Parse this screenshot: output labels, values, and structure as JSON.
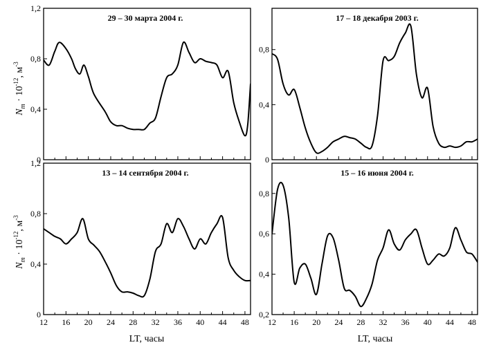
{
  "figure": {
    "ylabel_main": "N",
    "ylabel_sub": "m",
    "ylabel_rest": " · 10",
    "ylabel_exp": "-12",
    "ylabel_unit": ", м",
    "ylabel_unit_exp": "-3",
    "xlabel": "LT, часы"
  },
  "chart_data": [
    {
      "type": "line",
      "title": "29 – 30  марта 2004 г.",
      "xlim": [
        12,
        49
      ],
      "ylim": [
        0,
        1.2
      ],
      "xticks": [],
      "xtick_labels": [],
      "yticks": [
        0,
        0.4,
        0.8,
        1.2
      ],
      "ytick_labels": [
        "0",
        "0,4",
        "0,8",
        "1,2"
      ],
      "x": [
        12,
        13,
        14,
        14.8,
        16,
        17,
        17.7,
        18.5,
        19.2,
        20,
        21,
        23,
        24,
        25,
        26,
        27,
        28,
        29,
        30,
        31,
        32,
        33,
        34,
        35,
        36,
        37,
        38,
        39,
        40,
        41,
        42,
        43,
        44,
        45,
        46,
        47,
        48,
        48.5,
        49
      ],
      "y": [
        0.79,
        0.75,
        0.86,
        0.93,
        0.88,
        0.8,
        0.72,
        0.68,
        0.75,
        0.66,
        0.52,
        0.38,
        0.3,
        0.27,
        0.27,
        0.25,
        0.24,
        0.24,
        0.24,
        0.29,
        0.33,
        0.5,
        0.65,
        0.68,
        0.75,
        0.93,
        0.85,
        0.77,
        0.8,
        0.78,
        0.77,
        0.75,
        0.65,
        0.7,
        0.45,
        0.3,
        0.19,
        0.28,
        0.6
      ]
    },
    {
      "type": "line",
      "title": "17 – 18  декабря 2003 г.",
      "xlim": [
        12,
        49
      ],
      "ylim": [
        0,
        1.1
      ],
      "xticks": [],
      "xtick_labels": [],
      "yticks": [
        0,
        0.4,
        0.8
      ],
      "ytick_labels": [
        "0",
        "0,4",
        "0,8"
      ],
      "x": [
        12,
        13,
        14,
        15,
        16,
        17,
        18,
        19,
        20,
        21,
        22,
        23,
        24,
        25,
        26,
        27,
        28,
        29,
        30,
        31,
        32,
        33,
        34,
        35,
        36,
        37,
        38,
        39,
        40,
        41,
        42,
        43,
        44,
        45,
        46,
        47,
        48,
        49
      ],
      "y": [
        0.77,
        0.73,
        0.55,
        0.47,
        0.51,
        0.38,
        0.23,
        0.12,
        0.05,
        0.06,
        0.09,
        0.13,
        0.15,
        0.17,
        0.16,
        0.15,
        0.12,
        0.09,
        0.1,
        0.32,
        0.72,
        0.72,
        0.75,
        0.85,
        0.92,
        0.97,
        0.62,
        0.45,
        0.52,
        0.24,
        0.12,
        0.09,
        0.1,
        0.09,
        0.1,
        0.13,
        0.13,
        0.15
      ]
    },
    {
      "type": "line",
      "title": "13 – 14 сентября 2004 г.",
      "xlim": [
        12,
        49
      ],
      "ylim": [
        0,
        1.2
      ],
      "xticks": [
        12,
        16,
        20,
        24,
        28,
        32,
        36,
        40,
        44,
        48
      ],
      "xtick_labels": [
        "12",
        "16",
        "20",
        "24",
        "28",
        "32",
        "36",
        "40",
        "44",
        "48"
      ],
      "yticks": [
        0,
        0.4,
        0.8,
        1.2
      ],
      "ytick_labels": [
        "0",
        "0,4",
        "0,8",
        "1,2"
      ],
      "x": [
        12,
        13,
        14,
        15,
        16,
        17,
        18,
        19,
        20,
        21,
        22,
        23,
        24,
        25,
        26,
        27,
        28,
        29,
        30,
        31,
        32,
        33,
        34,
        35,
        36,
        37,
        38,
        39,
        40,
        41,
        42,
        43,
        44,
        45,
        46,
        47,
        48,
        49
      ],
      "y": [
        0.68,
        0.65,
        0.62,
        0.6,
        0.56,
        0.6,
        0.65,
        0.76,
        0.6,
        0.55,
        0.5,
        0.42,
        0.33,
        0.23,
        0.18,
        0.18,
        0.17,
        0.15,
        0.15,
        0.28,
        0.5,
        0.56,
        0.72,
        0.65,
        0.76,
        0.7,
        0.6,
        0.52,
        0.6,
        0.56,
        0.65,
        0.72,
        0.77,
        0.45,
        0.35,
        0.3,
        0.27,
        0.27
      ]
    },
    {
      "type": "line",
      "title": "15 – 16  июня 2004 г.",
      "xlim": [
        12,
        49
      ],
      "ylim": [
        0.2,
        0.95
      ],
      "xticks": [
        12,
        16,
        20,
        24,
        28,
        32,
        36,
        40,
        44,
        48
      ],
      "xtick_labels": [
        "12",
        "16",
        "20",
        "24",
        "28",
        "32",
        "36",
        "40",
        "44",
        "48"
      ],
      "yticks": [
        0.2,
        0.4,
        0.6,
        0.8
      ],
      "ytick_labels": [
        "0,2",
        "0,4",
        "0,6",
        "0,8"
      ],
      "x": [
        12,
        13,
        14,
        15,
        16,
        17,
        18,
        19,
        20,
        21,
        22,
        23,
        24,
        25,
        26,
        27,
        28,
        29,
        30,
        31,
        32,
        33,
        34,
        35,
        36,
        37,
        38,
        39,
        40,
        41,
        42,
        43,
        44,
        45,
        46,
        47,
        48,
        49
      ],
      "y": [
        0.6,
        0.82,
        0.84,
        0.68,
        0.36,
        0.43,
        0.45,
        0.38,
        0.3,
        0.45,
        0.59,
        0.58,
        0.47,
        0.33,
        0.32,
        0.29,
        0.24,
        0.28,
        0.35,
        0.47,
        0.53,
        0.62,
        0.55,
        0.52,
        0.57,
        0.6,
        0.62,
        0.53,
        0.45,
        0.47,
        0.5,
        0.49,
        0.53,
        0.63,
        0.57,
        0.51,
        0.5,
        0.46
      ]
    }
  ]
}
